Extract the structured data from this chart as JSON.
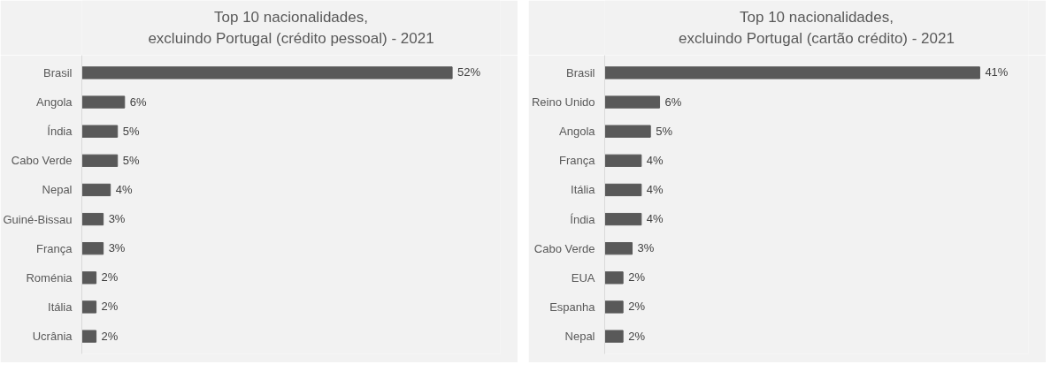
{
  "chart_data": [
    {
      "type": "bar",
      "orientation": "horizontal",
      "title": "Top 10 nacionalidades,\nexcluindo Portugal (crédito pessoal) - 2021",
      "categories": [
        "Brasil",
        "Angola",
        "Índia",
        "Cabo Verde",
        "Nepal",
        "Guiné-Bissau",
        "França",
        "Roménia",
        "Itália",
        "Ucrânia"
      ],
      "values": [
        52,
        6,
        5,
        5,
        4,
        3,
        3,
        2,
        2,
        2
      ],
      "value_labels": [
        "52%",
        "6%",
        "5%",
        "5%",
        "4%",
        "3%",
        "3%",
        "2%",
        "2%",
        "2%"
      ],
      "color": "#595959",
      "grid": false
    },
    {
      "type": "bar",
      "orientation": "horizontal",
      "title": "Top 10 nacionalidades,\nexcluindo Portugal (cartão crédito) - 2021",
      "categories": [
        "Brasil",
        "Reino Unido",
        "Angola",
        "França",
        "Itália",
        "Índia",
        "Cabo Verde",
        "EUA",
        "Espanha",
        "Nepal"
      ],
      "values": [
        41,
        6,
        5,
        4,
        4,
        4,
        3,
        2,
        2,
        2
      ],
      "value_labels": [
        "41%",
        "6%",
        "5%",
        "4%",
        "4%",
        "4%",
        "3%",
        "2%",
        "2%",
        "2%"
      ],
      "color": "#595959",
      "grid": false
    }
  ]
}
